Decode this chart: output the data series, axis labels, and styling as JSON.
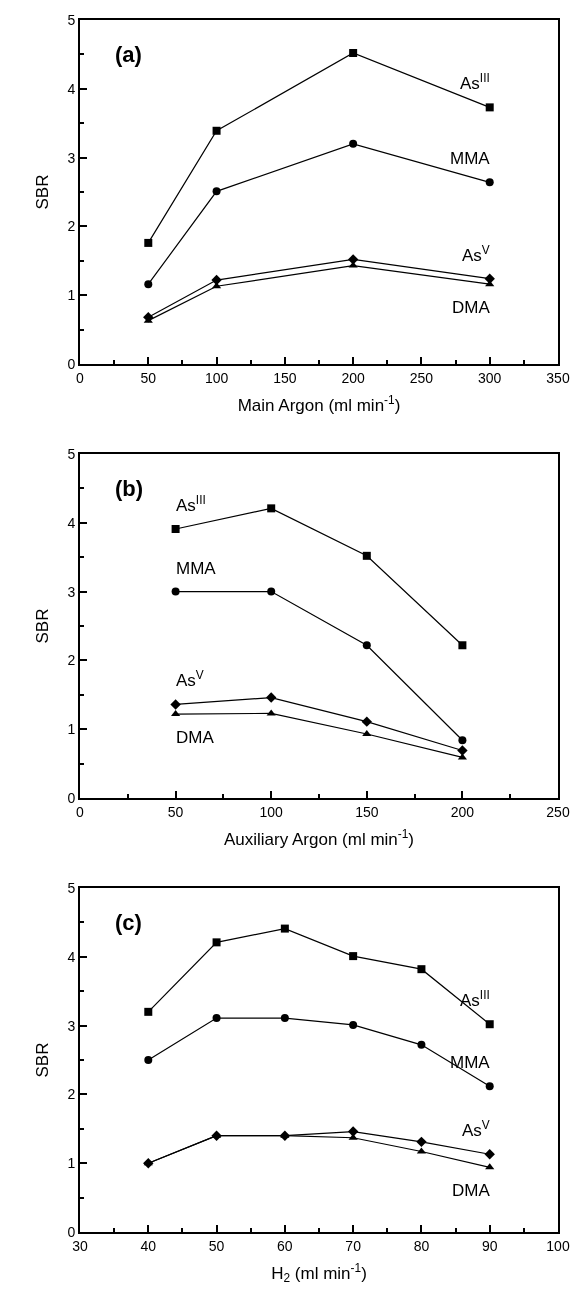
{
  "chart_data": [
    {
      "type": "line",
      "title": "(a)",
      "xlabel": "Main Argon (ml min$^{-1}$)",
      "ylabel": "SBR",
      "x": [
        50,
        100,
        200,
        300
      ],
      "series": [
        {
          "name": "As$^{III}$",
          "color": "#000000",
          "marker": "square",
          "values": [
            1.76,
            3.39,
            4.52,
            3.73
          ]
        },
        {
          "name": "MMA",
          "color": "#000000",
          "marker": "circle",
          "values": [
            1.16,
            2.51,
            3.2,
            2.64
          ]
        },
        {
          "name": "As$^{V}$",
          "color": "#000000",
          "marker": "diamond",
          "values": [
            0.68,
            1.22,
            1.52,
            1.24
          ]
        },
        {
          "name": "DMA",
          "color": "#000000",
          "marker": "triangle",
          "values": [
            0.63,
            1.13,
            1.43,
            1.16
          ]
        }
      ],
      "xlim": [
        0,
        350
      ],
      "xticks": [
        0,
        {
          "value": 25,
          "label": null
        },
        50,
        {
          "value": 75,
          "label": null
        },
        100,
        {
          "value": 125,
          "label": null
        },
        150,
        {
          "value": 175,
          "label": null
        },
        200,
        {
          "value": 225,
          "label": null
        },
        250,
        {
          "value": 275,
          "label": null
        },
        300,
        {
          "value": 325,
          "label": null
        },
        350
      ],
      "ylim": [
        0,
        5
      ],
      "yticks": [
        0,
        {
          "value": 0.5,
          "label": null
        },
        1,
        {
          "value": 1.5,
          "label": null
        },
        2,
        {
          "value": 2.5,
          "label": null
        },
        3,
        {
          "value": 3.5,
          "label": null
        },
        4,
        {
          "value": 4.5,
          "label": null
        },
        5
      ],
      "grid": false,
      "legend": false,
      "line_style": "solid"
    },
    {
      "type": "line",
      "title": "(b)",
      "xlabel": "Auxiliary Argon (ml min$^{-1}$)",
      "ylabel": "SBR",
      "x": [
        50,
        100,
        150,
        200
      ],
      "series": [
        {
          "name": "As$^{III}$",
          "color": "#000000",
          "marker": "square",
          "values": [
            3.91,
            4.21,
            3.52,
            2.22
          ]
        },
        {
          "name": "MMA",
          "color": "#000000",
          "marker": "circle",
          "values": [
            3.0,
            3.0,
            2.22,
            0.84
          ]
        },
        {
          "name": "As$^{V}$",
          "color": "#000000",
          "marker": "diamond",
          "values": [
            1.36,
            1.46,
            1.11,
            0.69
          ]
        },
        {
          "name": "DMA",
          "color": "#000000",
          "marker": "triangle",
          "values": [
            1.22,
            1.23,
            0.93,
            0.59
          ]
        }
      ],
      "xlim": [
        0,
        250
      ],
      "xticks": [
        0,
        {
          "value": 25,
          "label": null
        },
        50,
        {
          "value": 75,
          "label": null
        },
        100,
        {
          "value": 125,
          "label": null
        },
        150,
        {
          "value": 175,
          "label": null
        },
        200,
        {
          "value": 225,
          "label": null
        },
        250
      ],
      "ylim": [
        0,
        5
      ],
      "yticks": [
        0,
        {
          "value": 0.5,
          "label": null
        },
        1,
        {
          "value": 1.5,
          "label": null
        },
        2,
        {
          "value": 2.5,
          "label": null
        },
        3,
        {
          "value": 3.5,
          "label": null
        },
        4,
        {
          "value": 4.5,
          "label": null
        },
        5
      ],
      "grid": false,
      "legend": false,
      "line_style": "solid"
    },
    {
      "type": "line",
      "title": "(c)",
      "xlabel": "H$_{2}$ (ml min$^{-1}$)",
      "ylabel": "SBR",
      "x": [
        40,
        50,
        60,
        70,
        80,
        90
      ],
      "series": [
        {
          "name": "As$^{III}$",
          "color": "#000000",
          "marker": "square",
          "values": [
            3.2,
            4.21,
            4.41,
            4.01,
            3.82,
            3.02
          ]
        },
        {
          "name": "MMA",
          "color": "#000000",
          "marker": "circle",
          "values": [
            2.5,
            3.11,
            3.11,
            3.01,
            2.72,
            2.12
          ]
        },
        {
          "name": "As$^{V}$",
          "color": "#000000",
          "marker": "diamond",
          "values": [
            1.0,
            1.4,
            1.4,
            1.46,
            1.31,
            1.13
          ]
        },
        {
          "name": "DMA",
          "color": "#000000",
          "marker": "triangle",
          "values": [
            1.0,
            1.4,
            1.4,
            1.37,
            1.17,
            0.94
          ]
        }
      ],
      "xlim": [
        30,
        100
      ],
      "xticks": [
        30,
        {
          "value": 35,
          "label": null
        },
        40,
        {
          "value": 45,
          "label": null
        },
        50,
        {
          "value": 55,
          "label": null
        },
        60,
        {
          "value": 65,
          "label": null
        },
        70,
        {
          "value": 75,
          "label": null
        },
        80,
        {
          "value": 85,
          "label": null
        },
        90,
        {
          "value": 95,
          "label": null
        },
        100
      ],
      "ylim": [
        0,
        5
      ],
      "yticks": [
        0,
        {
          "value": 0.5,
          "label": null
        },
        1,
        {
          "value": 1.5,
          "label": null
        },
        2,
        {
          "value": 2.5,
          "label": null
        },
        3,
        {
          "value": 3.5,
          "label": null
        },
        4,
        {
          "value": 4.5,
          "label": null
        },
        5
      ],
      "grid": false,
      "legend": false,
      "line_style": "solid"
    }
  ]
}
